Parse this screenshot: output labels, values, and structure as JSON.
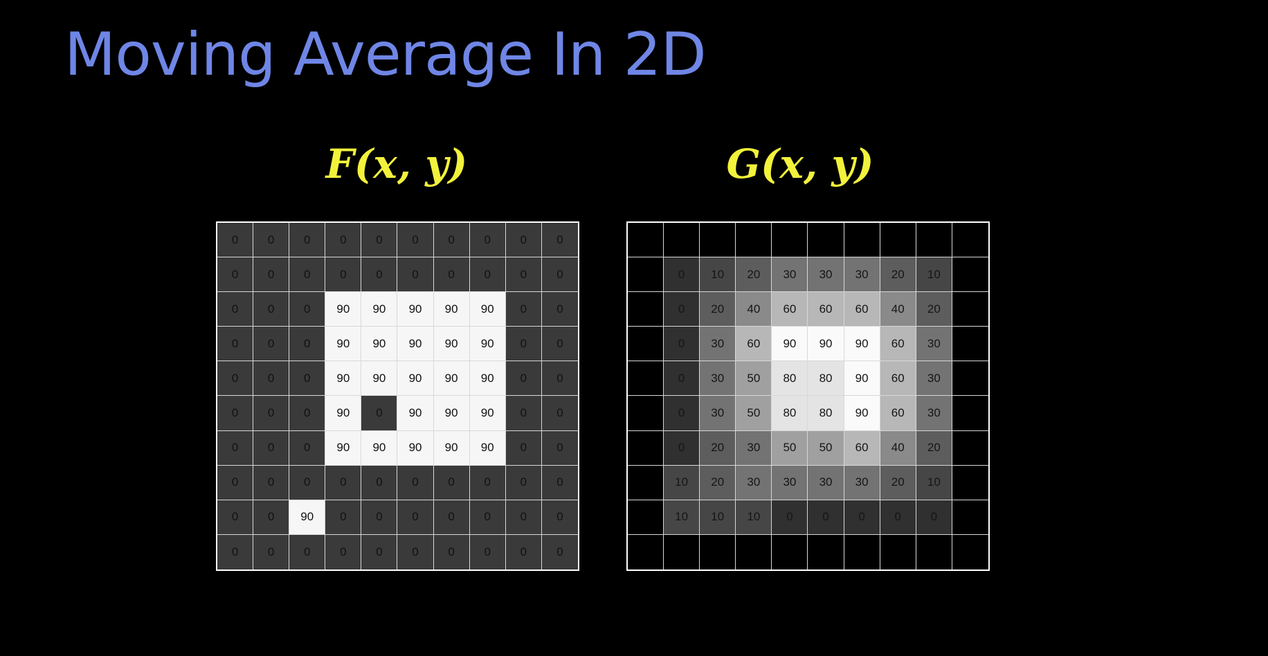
{
  "title": "Moving Average In 2D",
  "colors": {
    "title": "#6f86e6",
    "labels": "#f2f23c",
    "grid_lines": "#d8d8d8"
  },
  "input": {
    "label": "F(x, y)",
    "values": [
      [
        "0",
        "0",
        "0",
        "0",
        "0",
        "0",
        "0",
        "0",
        "0",
        "0"
      ],
      [
        "0",
        "0",
        "0",
        "0",
        "0",
        "0",
        "0",
        "0",
        "0",
        "0"
      ],
      [
        "0",
        "0",
        "0",
        "90",
        "90",
        "90",
        "90",
        "90",
        "0",
        "0"
      ],
      [
        "0",
        "0",
        "0",
        "90",
        "90",
        "90",
        "90",
        "90",
        "0",
        "0"
      ],
      [
        "0",
        "0",
        "0",
        "90",
        "90",
        "90",
        "90",
        "90",
        "0",
        "0"
      ],
      [
        "0",
        "0",
        "0",
        "90",
        "0",
        "90",
        "90",
        "90",
        "0",
        "0"
      ],
      [
        "0",
        "0",
        "0",
        "90",
        "90",
        "90",
        "90",
        "90",
        "0",
        "0"
      ],
      [
        "0",
        "0",
        "0",
        "0",
        "0",
        "0",
        "0",
        "0",
        "0",
        "0"
      ],
      [
        "0",
        "0",
        "90",
        "0",
        "0",
        "0",
        "0",
        "0",
        "0",
        "0"
      ],
      [
        "0",
        "0",
        "0",
        "0",
        "0",
        "0",
        "0",
        "0",
        "0",
        "0"
      ]
    ]
  },
  "output": {
    "label": "G(x, y)",
    "values": [
      [
        "",
        "",
        "",
        "",
        "",
        "",
        "",
        "",
        "",
        ""
      ],
      [
        "",
        "0",
        "10",
        "20",
        "30",
        "30",
        "30",
        "20",
        "10",
        ""
      ],
      [
        "",
        "0",
        "20",
        "40",
        "60",
        "60",
        "60",
        "40",
        "20",
        ""
      ],
      [
        "",
        "0",
        "30",
        "60",
        "90",
        "90",
        "90",
        "60",
        "30",
        ""
      ],
      [
        "",
        "0",
        "30",
        "50",
        "80",
        "80",
        "90",
        "60",
        "30",
        ""
      ],
      [
        "",
        "0",
        "30",
        "50",
        "80",
        "80",
        "90",
        "60",
        "30",
        ""
      ],
      [
        "",
        "0",
        "20",
        "30",
        "50",
        "50",
        "60",
        "40",
        "20",
        ""
      ],
      [
        "",
        "10",
        "20",
        "30",
        "30",
        "30",
        "30",
        "20",
        "10",
        ""
      ],
      [
        "",
        "10",
        "10",
        "10",
        "0",
        "0",
        "0",
        "0",
        "0",
        ""
      ],
      [
        "",
        "",
        "",
        "",
        "",
        "",
        "",
        "",
        "",
        ""
      ]
    ]
  }
}
